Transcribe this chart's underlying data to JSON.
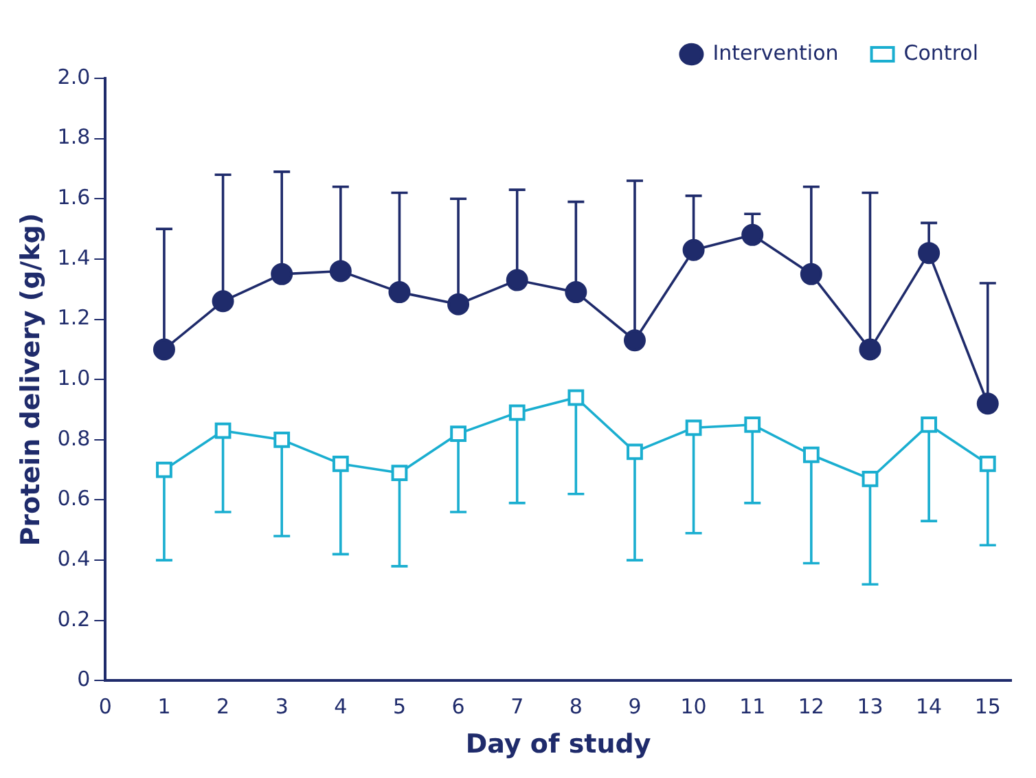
{
  "chart_data": {
    "type": "line",
    "xlabel": "Day of study",
    "ylabel": "Protein delivery (g/kg)",
    "x": [
      1,
      2,
      3,
      4,
      5,
      6,
      7,
      8,
      9,
      10,
      11,
      12,
      13,
      14,
      15
    ],
    "xlim": [
      0,
      15.4
    ],
    "xticks": [
      0,
      1,
      2,
      3,
      4,
      5,
      6,
      7,
      8,
      9,
      10,
      11,
      12,
      13,
      14,
      15
    ],
    "ylim": [
      0,
      2
    ],
    "yticks": [
      {
        "value": 0,
        "label": "0"
      },
      {
        "value": 0.2,
        "label": "0.2"
      },
      {
        "value": 0.4,
        "label": "0.4"
      },
      {
        "value": 0.6,
        "label": "0.6"
      },
      {
        "value": 0.8,
        "label": "0.8"
      },
      {
        "value": 1,
        "label": "1.0"
      },
      {
        "value": 1.2,
        "label": "1.2"
      },
      {
        "value": 1.4,
        "label": "1.4"
      },
      {
        "value": 1.6,
        "label": "1.6"
      },
      {
        "value": 1.8,
        "label": "1.8"
      },
      {
        "value": 2,
        "label": "2.0"
      }
    ],
    "grid": false,
    "legend": "top right",
    "series": [
      {
        "name": "Intervention",
        "color": "#1f2b6b",
        "marker": "circle",
        "values": [
          1.1,
          1.26,
          1.35,
          1.36,
          1.29,
          1.25,
          1.33,
          1.29,
          1.13,
          1.43,
          1.48,
          1.35,
          1.1,
          1.42,
          0.92
        ],
        "errors": [
          [
            1.1,
            1.5
          ],
          [
            1.26,
            1.68
          ],
          [
            1.35,
            1.69
          ],
          [
            1.36,
            1.64
          ],
          [
            1.29,
            1.62
          ],
          [
            1.25,
            1.6
          ],
          [
            1.33,
            1.63
          ],
          [
            1.29,
            1.59
          ],
          [
            1.13,
            1.66
          ],
          [
            1.43,
            1.61
          ],
          [
            1.48,
            1.55
          ],
          [
            1.35,
            1.64
          ],
          [
            1.1,
            1.62
          ],
          [
            1.42,
            1.52
          ],
          [
            0.92,
            1.32
          ]
        ]
      },
      {
        "name": "Control",
        "color": "#1aaed0",
        "marker": "square",
        "values": [
          0.7,
          0.83,
          0.8,
          0.72,
          0.69,
          0.82,
          0.89,
          0.94,
          0.76,
          0.84,
          0.85,
          0.75,
          0.67,
          0.85,
          0.72
        ],
        "errors": [
          [
            0.4,
            0.7
          ],
          [
            0.56,
            0.83
          ],
          [
            0.48,
            0.8
          ],
          [
            0.42,
            0.72
          ],
          [
            0.38,
            0.69
          ],
          [
            0.56,
            0.82
          ],
          [
            0.59,
            0.89
          ],
          [
            0.62,
            0.94
          ],
          [
            0.4,
            0.76
          ],
          [
            0.49,
            0.84
          ],
          [
            0.59,
            0.85
          ],
          [
            0.39,
            0.75
          ],
          [
            0.32,
            0.67
          ],
          [
            0.53,
            0.85
          ],
          [
            0.45,
            0.72
          ]
        ]
      }
    ]
  }
}
